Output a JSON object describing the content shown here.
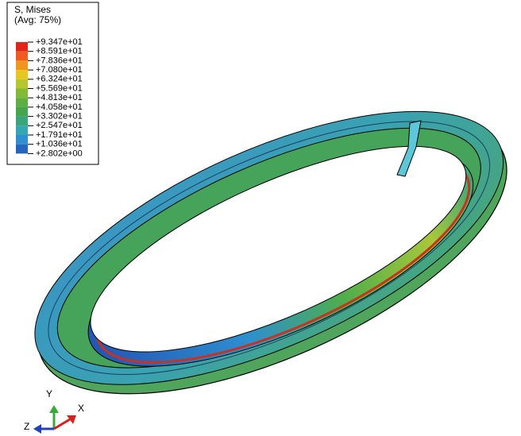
{
  "legend": {
    "title": "S, Mises",
    "subtitle": "(Avg: 75%)",
    "labels": [
      "+9.347e+01",
      "+8.591e+01",
      "+7.836e+01",
      "+7.080e+01",
      "+6.324e+01",
      "+5.569e+01",
      "+4.813e+01",
      "+4.058e+01",
      "+3.302e+01",
      "+2.547e+01",
      "+1.791e+01",
      "+1.036e+01",
      "+2.802e+00"
    ],
    "colors": [
      "#e3241b",
      "#ee5d1f",
      "#f0951e",
      "#e8c61f",
      "#b4c72e",
      "#82ba35",
      "#5daf42",
      "#44a54e",
      "#3aa57d",
      "#36a6b4",
      "#2f8fd0",
      "#2466be"
    ]
  },
  "triad": {
    "x": "X",
    "y": "Y",
    "z": "Z"
  }
}
